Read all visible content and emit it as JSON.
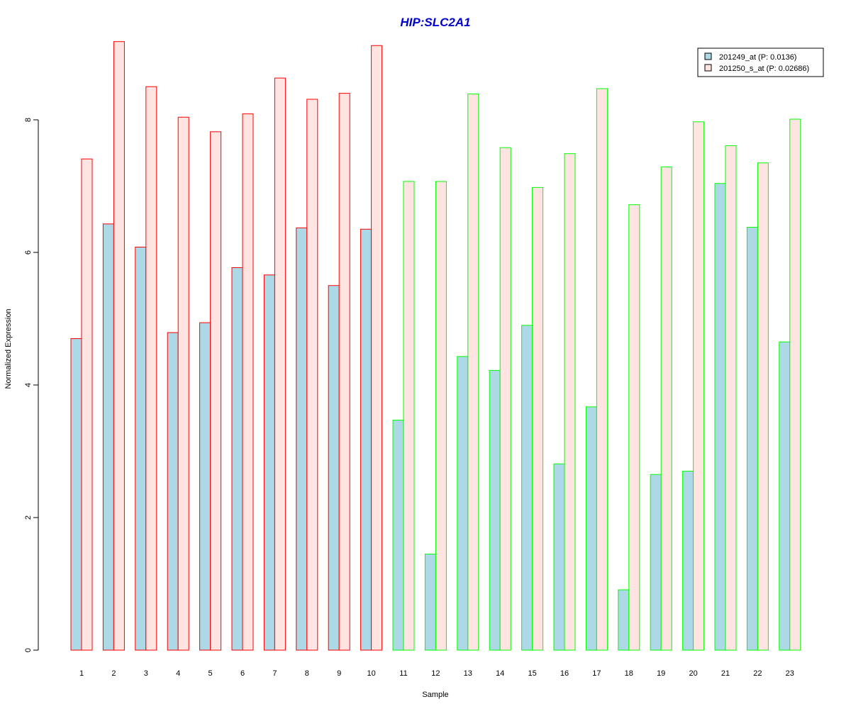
{
  "chart_data": {
    "type": "bar",
    "title": "HIP:SLC2A1",
    "xlabel": "Sample",
    "ylabel": "Normalized Expression",
    "categories": [
      "1",
      "2",
      "3",
      "4",
      "5",
      "6",
      "7",
      "8",
      "9",
      "10",
      "11",
      "12",
      "13",
      "14",
      "15",
      "16",
      "17",
      "18",
      "19",
      "20",
      "21",
      "22",
      "23"
    ],
    "yticks": [
      "0",
      "2",
      "4",
      "6",
      "8"
    ],
    "ylim": [
      0,
      9.2
    ],
    "grid": false,
    "legend_position": "top-right",
    "series": [
      {
        "name": "201249_at (P: 0.0136)",
        "fill": "#ADD8E6",
        "values": [
          4.7,
          6.43,
          6.08,
          4.79,
          4.94,
          5.77,
          5.66,
          6.37,
          5.5,
          6.35,
          3.47,
          1.45,
          4.43,
          4.22,
          4.9,
          2.81,
          3.67,
          0.91,
          2.65,
          2.7,
          7.04,
          6.38,
          4.65
        ]
      },
      {
        "name": "201250_s_at (P: 0.02686)",
        "fill": "#FFE4E1",
        "values": [
          7.41,
          9.18,
          8.5,
          8.04,
          7.82,
          8.09,
          8.63,
          8.31,
          8.4,
          9.12,
          7.07,
          7.07,
          8.39,
          7.58,
          6.98,
          7.49,
          8.47,
          6.72,
          7.29,
          7.97,
          7.61,
          7.35,
          8.01
        ]
      }
    ],
    "group_border_colors": [
      "#FF0000",
      "#FF0000",
      "#FF0000",
      "#FF0000",
      "#FF0000",
      "#FF0000",
      "#FF0000",
      "#FF0000",
      "#FF0000",
      "#FF0000",
      "#00FF00",
      "#00FF00",
      "#00FF00",
      "#00FF00",
      "#00FF00",
      "#00FF00",
      "#00FF00",
      "#00FF00",
      "#00FF00",
      "#00FF00",
      "#00FF00",
      "#00FF00",
      "#00FF00"
    ],
    "colors": {
      "title": "#0000CC",
      "group_a_border": "#CC0000",
      "group_b_border": "#00EE00"
    }
  }
}
